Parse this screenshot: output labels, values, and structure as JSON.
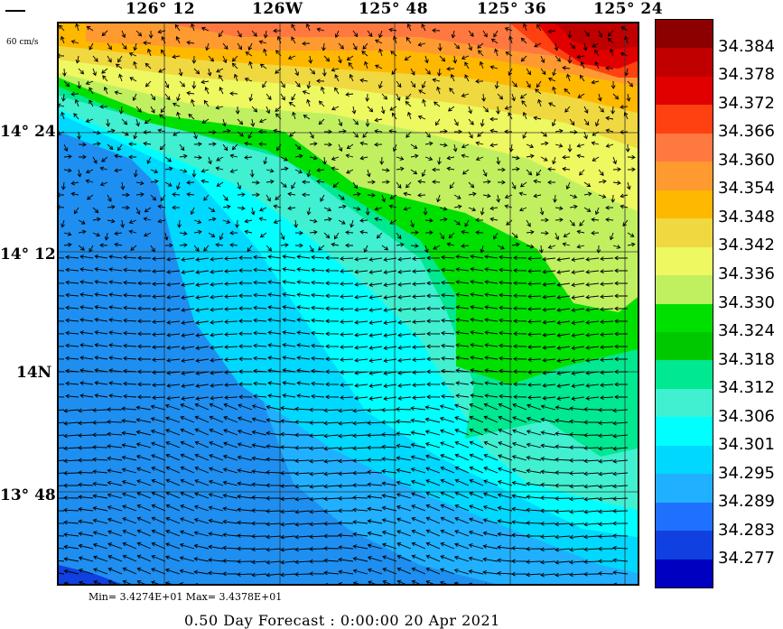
{
  "top_axis": {
    "lon_labels": [
      "126° 12",
      "126W",
      "125° 48",
      "125° 36",
      "125° 24"
    ]
  },
  "left_axis": {
    "lat_labels": [
      "14° 24",
      "14° 12",
      "14N",
      "13° 48"
    ]
  },
  "scale": {
    "label": "60 cm/s"
  },
  "colorbar": {
    "labels": [
      "34.384",
      "34.378",
      "34.372",
      "34.366",
      "34.360",
      "34.354",
      "34.348",
      "34.342",
      "34.336",
      "34.330",
      "34.324",
      "34.318",
      "34.312",
      "34.306",
      "34.301",
      "34.295",
      "34.289",
      "34.283",
      "34.277"
    ],
    "colors": [
      "#8b0000",
      "#c00000",
      "#e00000",
      "#ff4010",
      "#ff7840",
      "#ff9a30",
      "#ffb800",
      "#f0d840",
      "#eef860",
      "#c0f060",
      "#00e000",
      "#00c800",
      "#00e890",
      "#40f0d0",
      "#00ffff",
      "#00d8ff",
      "#20b0ff",
      "#2070ff",
      "#1040e0",
      "#0000c0"
    ]
  },
  "stats": {
    "minmax": "Min= 3.4274E+01   Max= 3.4378E+01"
  },
  "footer": {
    "forecast": "0.50 Day Forecast :  0:00:00  20 Apr 2021"
  }
}
